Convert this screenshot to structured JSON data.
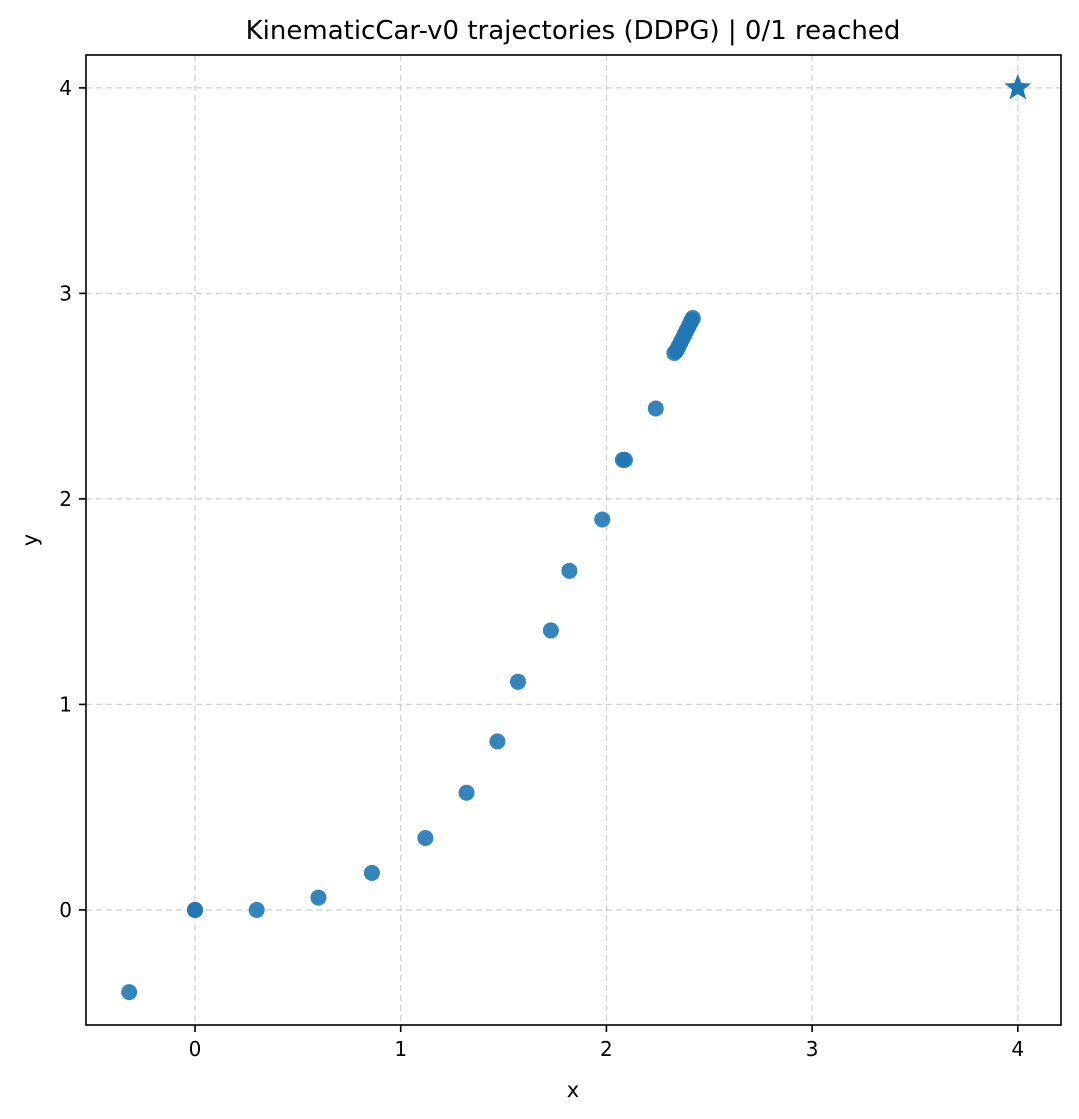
{
  "chart_data": {
    "type": "scatter",
    "title": "KinematicCar-v0 trajectories (DDPG) | 0/1 reached",
    "xlabel": "x",
    "ylabel": "y",
    "xlim": [
      -0.53,
      4.21
    ],
    "ylim": [
      -0.56,
      4.16
    ],
    "xticks": [
      0,
      1,
      2,
      3,
      4
    ],
    "yticks": [
      0,
      1,
      2,
      3,
      4
    ],
    "xtick_labels": [
      "0",
      "1",
      "2",
      "3",
      "4"
    ],
    "ytick_labels": [
      "0",
      "1",
      "2",
      "3",
      "4"
    ],
    "grid": true,
    "color": "#1f77b4",
    "series": [
      {
        "x": [
          -0.32,
          0.0,
          0.0,
          0.3,
          0.6,
          0.86,
          1.12,
          1.32,
          1.47,
          1.57,
          1.73,
          1.82,
          1.98,
          2.08,
          2.09,
          2.24,
          2.33,
          2.34,
          2.35,
          2.36,
          2.37,
          2.38,
          2.39,
          2.4,
          2.41,
          2.415,
          2.42
        ],
        "y": [
          -0.4,
          0.0,
          0.0,
          0.0,
          0.06,
          0.18,
          0.35,
          0.57,
          0.82,
          1.11,
          1.36,
          1.65,
          1.9,
          2.19,
          2.19,
          2.44,
          2.71,
          2.72,
          2.74,
          2.76,
          2.78,
          2.8,
          2.82,
          2.84,
          2.86,
          2.87,
          2.88
        ]
      }
    ],
    "goal": {
      "x": 4.0,
      "y": 4.0,
      "marker": "star"
    }
  }
}
